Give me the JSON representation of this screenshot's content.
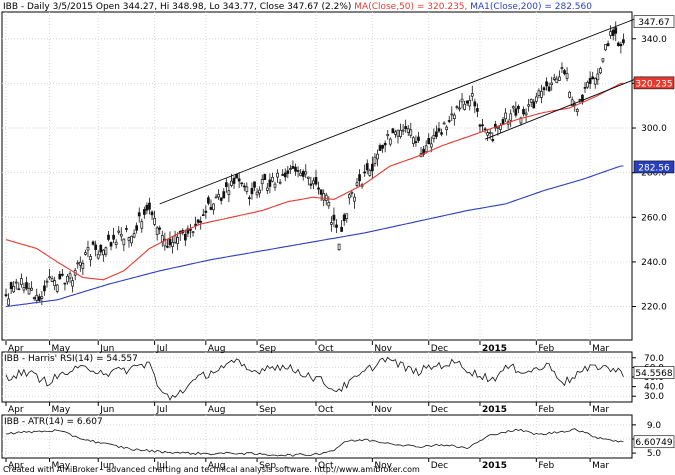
{
  "main_title": {
    "text_black": "IBB - Daily 3/5/2015 Open 344.27, Hi 348.98, Lo 343.77, Close 347.67 (2.2%)",
    "text_ma50": "MA(Close,50) = 320.235,",
    "text_ma200": "MA1(Close,200) = 282.560"
  },
  "rsi_title": "IBB - Harris' RSI(14) = 54.557",
  "atr_title": "IBB - ATR(14) = 6.607",
  "footer": "Created with AmiBroker - advanced charting and technical analysis software. http://www.amibroker.com",
  "colors": {
    "ma50": "#e8392f",
    "ma200": "#2a3fbf",
    "candle": "#111111",
    "background": "#ffffff",
    "grid": "#d6d6d6"
  },
  "chart_data": {
    "type": "candlestick",
    "ticker": "IBB",
    "price_panel": {
      "y_ticks": [
        220,
        240,
        260,
        280,
        300,
        320,
        340
      ],
      "y_tick_labels": [
        "220.0",
        "240.0",
        "260.0",
        "280.0",
        "300.0",
        "320.0",
        "340.0"
      ],
      "ylim": [
        205,
        352
      ],
      "last_close_label": "347.67",
      "ma50_label": "320.235",
      "ma200_label": "282.56",
      "close_anchors": [
        [
          0,
          222
        ],
        [
          6,
          232
        ],
        [
          12,
          224
        ],
        [
          18,
          232
        ],
        [
          25,
          233
        ],
        [
          32,
          244
        ],
        [
          42,
          250
        ],
        [
          50,
          255
        ],
        [
          56,
          264
        ],
        [
          60,
          254
        ],
        [
          64,
          248
        ],
        [
          70,
          252
        ],
        [
          78,
          262
        ],
        [
          84,
          270
        ],
        [
          90,
          279
        ],
        [
          96,
          270
        ],
        [
          102,
          276
        ],
        [
          108,
          278
        ],
        [
          114,
          280
        ],
        [
          118,
          277
        ],
        [
          124,
          272
        ],
        [
          127,
          260
        ],
        [
          130,
          250
        ],
        [
          134,
          268
        ],
        [
          138,
          275
        ],
        [
          144,
          285
        ],
        [
          150,
          297
        ],
        [
          156,
          300
        ],
        [
          162,
          290
        ],
        [
          168,
          296
        ],
        [
          174,
          305
        ],
        [
          178,
          310
        ],
        [
          182,
          313
        ],
        [
          186,
          300
        ],
        [
          190,
          297
        ],
        [
          194,
          303
        ],
        [
          198,
          308
        ],
        [
          202,
          307
        ],
        [
          206,
          312
        ],
        [
          212,
          319
        ],
        [
          218,
          326
        ],
        [
          222,
          309
        ],
        [
          226,
          316
        ],
        [
          232,
          328
        ],
        [
          236,
          341
        ],
        [
          240,
          338
        ]
      ],
      "ma50": [
        [
          0,
          250
        ],
        [
          6,
          248
        ],
        [
          12,
          246
        ],
        [
          20,
          240
        ],
        [
          30,
          233
        ],
        [
          38,
          232
        ],
        [
          46,
          236
        ],
        [
          56,
          246
        ],
        [
          66,
          252
        ],
        [
          76,
          257
        ],
        [
          88,
          260
        ],
        [
          100,
          263
        ],
        [
          110,
          267
        ],
        [
          120,
          269
        ],
        [
          128,
          268
        ],
        [
          140,
          275
        ],
        [
          150,
          283
        ],
        [
          160,
          287
        ],
        [
          170,
          292
        ],
        [
          180,
          296
        ],
        [
          190,
          300
        ],
        [
          200,
          304
        ],
        [
          210,
          307
        ],
        [
          220,
          309
        ],
        [
          230,
          314
        ],
        [
          240,
          320
        ]
      ],
      "ma200": [
        [
          0,
          220
        ],
        [
          20,
          223
        ],
        [
          40,
          230
        ],
        [
          60,
          236
        ],
        [
          80,
          241
        ],
        [
          100,
          245
        ],
        [
          120,
          249
        ],
        [
          140,
          253
        ],
        [
          160,
          258
        ],
        [
          180,
          263
        ],
        [
          195,
          266
        ],
        [
          210,
          272
        ],
        [
          225,
          277
        ],
        [
          240,
          283
        ]
      ],
      "channel_lines": [
        {
          "from": [
            60,
            266
          ],
          "to": [
            248,
            350
          ]
        },
        {
          "from": [
            187,
            295
          ],
          "to": [
            248,
            323
          ]
        }
      ]
    },
    "rsi_panel": {
      "y_ticks": [
        30,
        40,
        50,
        60,
        70
      ],
      "y_tick_labels": [
        "30.0",
        "40.0",
        "50.0",
        "60.0",
        "70.0"
      ],
      "ylim": [
        24,
        76
      ],
      "last_label": "54.5568",
      "anchors": [
        [
          0,
          50
        ],
        [
          8,
          55
        ],
        [
          16,
          45
        ],
        [
          24,
          55
        ],
        [
          32,
          60
        ],
        [
          40,
          54
        ],
        [
          48,
          58
        ],
        [
          56,
          65
        ],
        [
          60,
          35
        ],
        [
          64,
          28
        ],
        [
          68,
          35
        ],
        [
          76,
          50
        ],
        [
          84,
          60
        ],
        [
          90,
          65
        ],
        [
          96,
          55
        ],
        [
          104,
          62
        ],
        [
          112,
          58
        ],
        [
          118,
          52
        ],
        [
          124,
          45
        ],
        [
          128,
          36
        ],
        [
          132,
          40
        ],
        [
          140,
          55
        ],
        [
          148,
          70
        ],
        [
          154,
          62
        ],
        [
          160,
          55
        ],
        [
          168,
          62
        ],
        [
          176,
          65
        ],
        [
          184,
          52
        ],
        [
          190,
          48
        ],
        [
          196,
          60
        ],
        [
          204,
          56
        ],
        [
          212,
          62
        ],
        [
          218,
          44
        ],
        [
          224,
          55
        ],
        [
          232,
          62
        ],
        [
          240,
          54.6
        ]
      ]
    },
    "atr_panel": {
      "y_ticks": [
        5.0,
        7.0,
        9.0
      ],
      "y_tick_labels": [
        "5.0",
        "7.0",
        "9.0"
      ],
      "ylim": [
        4.3,
        10.4
      ],
      "last_label": "6.60749",
      "anchors": [
        [
          0,
          7.8
        ],
        [
          20,
          8.2
        ],
        [
          30,
          7.0
        ],
        [
          40,
          6.2
        ],
        [
          50,
          5.5
        ],
        [
          60,
          5.2
        ],
        [
          70,
          5.0
        ],
        [
          80,
          4.9
        ],
        [
          90,
          5.0
        ],
        [
          100,
          4.8
        ],
        [
          110,
          4.7
        ],
        [
          120,
          4.8
        ],
        [
          128,
          5.4
        ],
        [
          132,
          6.6
        ],
        [
          140,
          6.9
        ],
        [
          150,
          6.4
        ],
        [
          160,
          5.9
        ],
        [
          170,
          6.2
        ],
        [
          180,
          5.7
        ],
        [
          190,
          7.7
        ],
        [
          200,
          8.3
        ],
        [
          208,
          7.6
        ],
        [
          216,
          8.0
        ],
        [
          222,
          8.4
        ],
        [
          230,
          7.3
        ],
        [
          240,
          6.6
        ]
      ]
    },
    "x_axis": {
      "labels": [
        "Apr",
        "May",
        "Jun",
        "Jul",
        "Aug",
        "Sep",
        "Oct",
        "Nov",
        "Dec",
        "2015",
        "Feb",
        "Mar"
      ],
      "bar_index": [
        0,
        17,
        36,
        58,
        78,
        98,
        121,
        143,
        165,
        185,
        207,
        228
      ],
      "bold_labels": [
        "2015"
      ],
      "n_bars": 242
    }
  }
}
